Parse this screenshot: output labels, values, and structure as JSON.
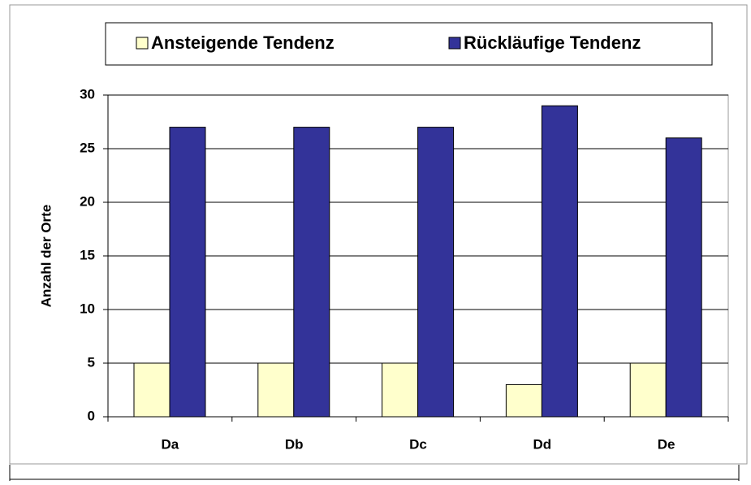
{
  "chart_data": {
    "type": "bar",
    "categories": [
      "Da",
      "Db",
      "Dc",
      "Dd",
      "De"
    ],
    "series": [
      {
        "name": "Ansteigende Tendenz",
        "color": "#ffffcc",
        "values": [
          5,
          5,
          5,
          3,
          5
        ]
      },
      {
        "name": "Rückläufige Tendenz",
        "color": "#333399",
        "values": [
          27,
          27,
          27,
          29,
          26
        ]
      }
    ],
    "y_label": "Anzahl der Orte",
    "ylim": [
      0,
      30
    ],
    "yticks": [
      0,
      5,
      10,
      15,
      20,
      25,
      30
    ],
    "grid": true,
    "legend": "top"
  }
}
